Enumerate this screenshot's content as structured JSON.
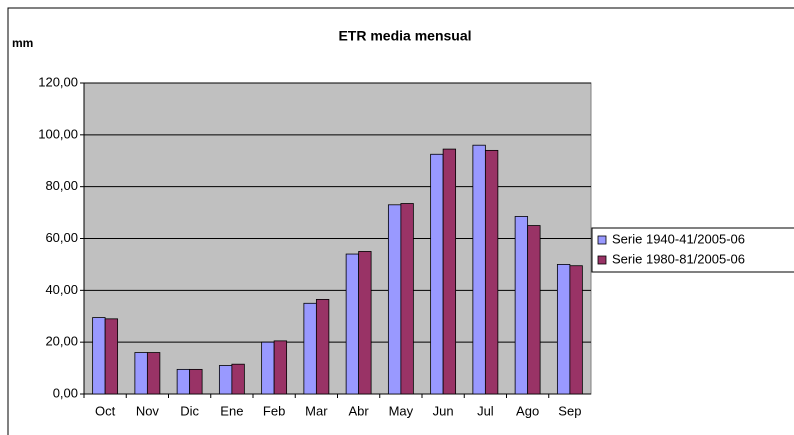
{
  "chart_data": {
    "type": "bar",
    "title": "ETR media mensual",
    "y_label": "mm",
    "categories": [
      "Oct",
      "Nov",
      "Dic",
      "Ene",
      "Feb",
      "Mar",
      "Abr",
      "May",
      "Jun",
      "Jul",
      "Ago",
      "Sep"
    ],
    "series": [
      {
        "name": "Serie 1940-41/2005-06",
        "color": "#9999ff",
        "values": [
          29.5,
          16,
          9.5,
          11,
          20,
          35,
          54,
          73,
          92.5,
          96,
          68.5,
          50
        ]
      },
      {
        "name": "Serie 1980-81/2005-06",
        "color": "#993366",
        "values": [
          29,
          16,
          9.5,
          11.5,
          20.5,
          36.5,
          55,
          73.5,
          94.5,
          94,
          65,
          49.5
        ]
      }
    ],
    "ylim": [
      0,
      120
    ],
    "yticks": [
      {
        "value": 0,
        "label": "0,00"
      },
      {
        "value": 20,
        "label": "20,00"
      },
      {
        "value": 40,
        "label": "40,00"
      },
      {
        "value": 60,
        "label": "60,00"
      },
      {
        "value": 80,
        "label": "80,00"
      },
      {
        "value": 100,
        "label": "100,00"
      },
      {
        "value": 120,
        "label": "120,00"
      }
    ],
    "grid": true,
    "legend": "right",
    "plot_background": "#c0c0c0"
  }
}
